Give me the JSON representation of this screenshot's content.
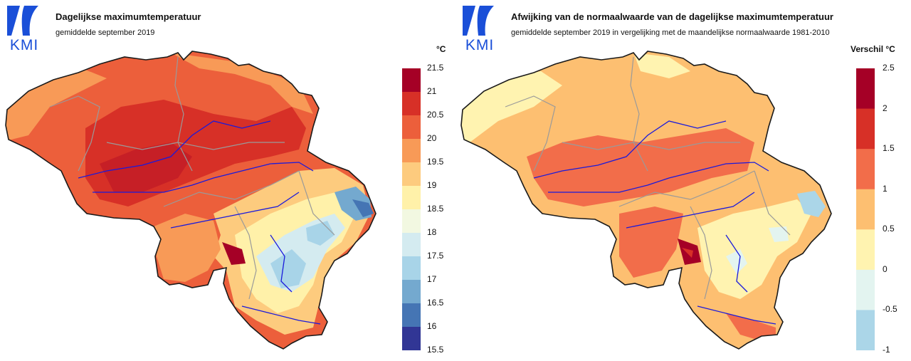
{
  "left": {
    "logo_text": "KMI",
    "title": "Dagelijkse maximumtemperatuur",
    "subtitle": "gemiddelde september 2019",
    "unit": "°C",
    "legend_ticks": [
      "21.5",
      "21",
      "20.5",
      "20",
      "19.5",
      "19",
      "18.5",
      "18",
      "17.5",
      "17",
      "16.5",
      "16",
      "15.5"
    ],
    "legend_colors": [
      "#a50026",
      "#d73027",
      "#ec5f3b",
      "#f89a57",
      "#fdcb7e",
      "#fff1a9",
      "#f2f8e1",
      "#d4ebf0",
      "#a8d4e8",
      "#74a9cf",
      "#4575b4",
      "#313695"
    ]
  },
  "right": {
    "logo_text": "KMI",
    "title": "Afwijking van de normaalwaarde van de dagelijkse maximumtemperatuur",
    "subtitle": "gemiddelde september 2019 in vergelijking met de maandelijkse normaalwaarde 1981-2010",
    "unit": "Verschil °C",
    "legend_ticks": [
      "2.5",
      "2",
      "1.5",
      "1",
      "0.5",
      "0",
      "-0.5",
      "-1"
    ],
    "legend_colors": [
      "#a50026",
      "#d73027",
      "#f26d4a",
      "#fdbf71",
      "#fff3b0",
      "#e3f4f0",
      "#abd6e8"
    ]
  },
  "colors": {
    "border": "#1a1a1a",
    "province_lines": "#9a9a9a",
    "rivers": "#1a1adc",
    "logo_blue": "#1a4fd8"
  }
}
